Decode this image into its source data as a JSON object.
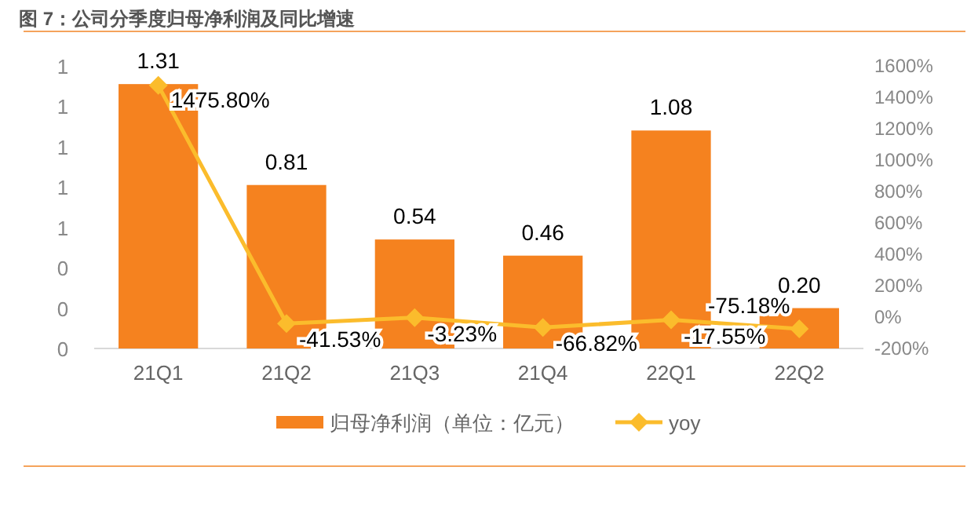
{
  "chart_data": {
    "type": "bar",
    "title": "图 7：公司分季度归母净利润及同比增速",
    "categories": [
      "21Q1",
      "21Q2",
      "21Q3",
      "21Q4",
      "22Q1",
      "22Q2"
    ],
    "series": [
      {
        "name": "归母净利润（单位：亿元）",
        "color": "#f5821f",
        "values": [
          1.31,
          0.81,
          0.54,
          0.46,
          1.08,
          0.2
        ],
        "value_labels": [
          "1.31",
          "0.81",
          "0.54",
          "0.46",
          "1.08",
          "0.20"
        ]
      },
      {
        "name": "yoy",
        "type": "line",
        "axis": "y2",
        "color": "#fbbc2c",
        "marker": "diamond",
        "values": [
          1475.8,
          -41.53,
          -3.23,
          -66.82,
          -17.55,
          -75.18
        ],
        "value_labels": [
          "1475.80%",
          "-41.53%",
          "-3.23%",
          "-66.82%",
          "-17.55%",
          "-75.18%"
        ]
      }
    ],
    "ylim": [
      0,
      1.4
    ],
    "yticks": [
      {
        "value": 0,
        "label": "0"
      },
      {
        "value": 0.2,
        "label": "0"
      },
      {
        "value": 0.4,
        "label": "0"
      },
      {
        "value": 0.6,
        "label": "1"
      },
      {
        "value": 0.8,
        "label": "1"
      },
      {
        "value": 1.0,
        "label": "1"
      },
      {
        "value": 1.2,
        "label": "1"
      },
      {
        "value": 1.4,
        "label": "1"
      }
    ],
    "y2lim": [
      -200,
      1600
    ],
    "y2ticks": [
      {
        "value": -200,
        "label": "-200%"
      },
      {
        "value": 0,
        "label": "0%"
      },
      {
        "value": 200,
        "label": "200%"
      },
      {
        "value": 400,
        "label": "400%"
      },
      {
        "value": 600,
        "label": "600%"
      },
      {
        "value": 800,
        "label": "800%"
      },
      {
        "value": 1000,
        "label": "1000%"
      },
      {
        "value": 1200,
        "label": "1200%"
      },
      {
        "value": 1400,
        "label": "1400%"
      },
      {
        "value": 1600,
        "label": "1600%"
      }
    ],
    "grid": false,
    "legend": "bottom"
  }
}
